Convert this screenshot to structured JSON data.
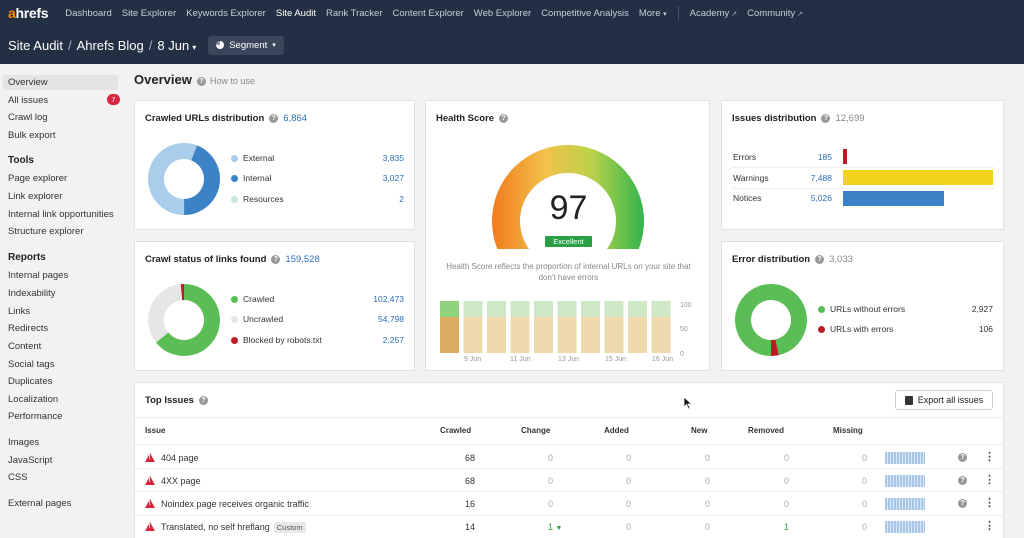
{
  "nav": {
    "logo_a": "a",
    "logo_rest": "hrefs",
    "items": [
      "Dashboard",
      "Site Explorer",
      "Keywords Explorer",
      "Site Audit",
      "Rank Tracker",
      "Content Explorer",
      "Web Explorer",
      "Competitive Analysis",
      "More"
    ],
    "active": "Site Audit",
    "external": [
      "Academy",
      "Community"
    ]
  },
  "header": {
    "crumbs": [
      "Site Audit",
      "Ahrefs Blog",
      "8 Jun"
    ],
    "segment_label": "Segment"
  },
  "sidebar": {
    "top": [
      "Overview",
      "All issues",
      "Crawl log",
      "Bulk export"
    ],
    "all_issues_badge": "7",
    "tools_heading": "Tools",
    "tools": [
      "Page explorer",
      "Link explorer",
      "Internal link opportunities",
      "Structure explorer"
    ],
    "reports_heading": "Reports",
    "reports": [
      "Internal pages",
      "Indexability",
      "Links",
      "Redirects",
      "Content",
      "Social tags",
      "Duplicates",
      "Localization",
      "Performance"
    ],
    "media": [
      "Images",
      "JavaScript",
      "CSS"
    ],
    "external": [
      "External pages"
    ]
  },
  "overview": {
    "title": "Overview",
    "how_to_use": "How to use"
  },
  "crawled_urls": {
    "title": "Crawled URLs distribution",
    "total": "6,864",
    "rows": [
      {
        "label": "External",
        "value": "3,835",
        "color": "#a9cdea"
      },
      {
        "label": "Internal",
        "value": "3,027",
        "color": "#3c82c7"
      },
      {
        "label": "Resources",
        "value": "2",
        "color": "#c7e6d8"
      }
    ]
  },
  "crawl_status": {
    "title": "Crawl status of links found",
    "total": "159,528",
    "rows": [
      {
        "label": "Crawled",
        "value": "102,473",
        "color": "#5bbd55"
      },
      {
        "label": "Uncrawled",
        "value": "54,798",
        "color": "#e6e6e6"
      },
      {
        "label": "Blocked by robots.txt",
        "value": "2,257",
        "color": "#b81d24"
      }
    ]
  },
  "health": {
    "title": "Health Score",
    "score": "97",
    "badge": "Excellent",
    "description": "Health Score reflects the proportion of internal URLs on your site that don't have errors",
    "y_ticks": [
      "100",
      "50",
      "0"
    ],
    "x_ticks": [
      "9 Jun",
      "11 Jun",
      "13 Jun",
      "15 Jun",
      "16 Jun"
    ]
  },
  "issues_dist": {
    "title": "Issues distribution",
    "total": "12,699",
    "rows": [
      {
        "label": "Errors",
        "value": "185",
        "color": "#b81d24",
        "fraction": 0.025
      },
      {
        "label": "Warnings",
        "value": "7,488",
        "color": "#f2d31b",
        "fraction": 1.0
      },
      {
        "label": "Notices",
        "value": "5,026",
        "color": "#3c82c7",
        "fraction": 0.671
      }
    ]
  },
  "error_dist": {
    "title": "Error distribution",
    "total": "3,033",
    "rows": [
      {
        "label": "URLs without errors",
        "value": "2,927",
        "color": "#5bbd55"
      },
      {
        "label": "URLs with errors",
        "value": "106",
        "color": "#b81d24"
      }
    ]
  },
  "top_issues": {
    "title": "Top Issues",
    "export_label": "Export all issues",
    "columns": [
      "Issue",
      "Crawled",
      "Change",
      "Added",
      "New",
      "Removed",
      "Missing"
    ],
    "rows": [
      {
        "issue": "404 page",
        "crawled": "68",
        "change": "0",
        "added": "0",
        "new": "0",
        "removed": "0",
        "missing": "0",
        "tag": ""
      },
      {
        "issue": "4XX page",
        "crawled": "68",
        "change": "0",
        "added": "0",
        "new": "0",
        "removed": "0",
        "missing": "0",
        "tag": ""
      },
      {
        "issue": "Noindex page receives organic traffic",
        "crawled": "16",
        "change": "0",
        "added": "0",
        "new": "0",
        "removed": "0",
        "missing": "0",
        "tag": ""
      },
      {
        "issue": "Translated, no self hreflang",
        "crawled": "14",
        "change": "1",
        "added": "0",
        "new": "0",
        "removed": "1",
        "missing": "0",
        "tag": "Custom"
      }
    ]
  }
}
